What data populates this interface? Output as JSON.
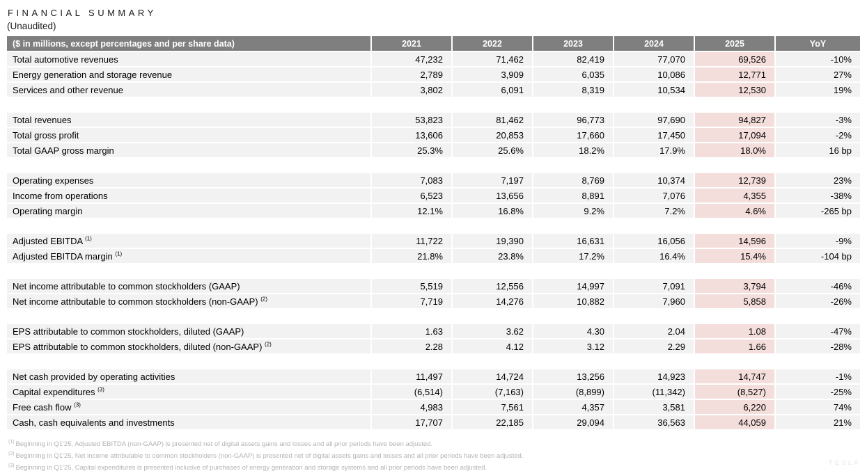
{
  "title": "FINANCIAL SUMMARY",
  "subtitle": "(Unaudited)",
  "watermark": "TESLA",
  "colors": {
    "header_bg": "#7f7f7f",
    "header_text": "#ffffff",
    "row_bg": "#f2f2f2",
    "highlight_column_bg": "#f4dedc",
    "footnote_text": "#b5b3b3"
  },
  "table": {
    "header_label": "($ in millions, except percentages and per share data)",
    "columns": [
      "2021",
      "2022",
      "2023",
      "2024",
      "2025",
      "YoY"
    ],
    "highlight_column": "2025",
    "sections": [
      {
        "rows": [
          {
            "label": "Total automotive revenues",
            "sup": "",
            "values": [
              "47,232",
              "71,462",
              "82,419",
              "77,070",
              "69,526",
              "-10%"
            ]
          },
          {
            "label": "Energy generation and storage revenue",
            "sup": "",
            "values": [
              "2,789",
              "3,909",
              "6,035",
              "10,086",
              "12,771",
              "27%"
            ]
          },
          {
            "label": "Services and other revenue",
            "sup": "",
            "values": [
              "3,802",
              "6,091",
              "8,319",
              "10,534",
              "12,530",
              "19%"
            ]
          }
        ]
      },
      {
        "rows": [
          {
            "label": "Total revenues",
            "sup": "",
            "values": [
              "53,823",
              "81,462",
              "96,773",
              "97,690",
              "94,827",
              "-3%"
            ]
          },
          {
            "label": "Total gross profit",
            "sup": "",
            "values": [
              "13,606",
              "20,853",
              "17,660",
              "17,450",
              "17,094",
              "-2%"
            ]
          },
          {
            "label": "Total GAAP gross margin",
            "sup": "",
            "values": [
              "25.3%",
              "25.6%",
              "18.2%",
              "17.9%",
              "18.0%",
              "16 bp"
            ]
          }
        ]
      },
      {
        "rows": [
          {
            "label": "Operating expenses",
            "sup": "",
            "values": [
              "7,083",
              "7,197",
              "8,769",
              "10,374",
              "12,739",
              "23%"
            ]
          },
          {
            "label": "Income from operations",
            "sup": "",
            "values": [
              "6,523",
              "13,656",
              "8,891",
              "7,076",
              "4,355",
              "-38%"
            ]
          },
          {
            "label": "Operating margin",
            "sup": "",
            "values": [
              "12.1%",
              "16.8%",
              "9.2%",
              "7.2%",
              "4.6%",
              "-265 bp"
            ]
          }
        ]
      },
      {
        "rows": [
          {
            "label": "Adjusted EBITDA ",
            "sup": "(1)",
            "values": [
              "11,722",
              "19,390",
              "16,631",
              "16,056",
              "14,596",
              "-9%"
            ]
          },
          {
            "label": "Adjusted EBITDA margin ",
            "sup": "(1)",
            "values": [
              "21.8%",
              "23.8%",
              "17.2%",
              "16.4%",
              "15.4%",
              "-104 bp"
            ]
          }
        ]
      },
      {
        "rows": [
          {
            "label": "Net income attributable to common stockholders (GAAP)",
            "sup": "",
            "values": [
              "5,519",
              "12,556",
              "14,997",
              "7,091",
              "3,794",
              "-46%"
            ]
          },
          {
            "label": "Net income attributable to common stockholders (non-GAAP) ",
            "sup": "(2)",
            "values": [
              "7,719",
              "14,276",
              "10,882",
              "7,960",
              "5,858",
              "-26%"
            ]
          }
        ]
      },
      {
        "rows": [
          {
            "label": "EPS attributable to common stockholders, diluted (GAAP)",
            "sup": "",
            "values": [
              "1.63",
              "3.62",
              "4.30",
              "2.04",
              "1.08",
              "-47%"
            ]
          },
          {
            "label": "EPS attributable to common stockholders, diluted (non-GAAP) ",
            "sup": "(2)",
            "values": [
              "2.28",
              "4.12",
              "3.12",
              "2.29",
              "1.66",
              "-28%"
            ]
          }
        ]
      },
      {
        "rows": [
          {
            "label": "Net cash provided by operating activities",
            "sup": "",
            "values": [
              "11,497",
              "14,724",
              "13,256",
              "14,923",
              "14,747",
              "-1%"
            ]
          },
          {
            "label": "Capital expenditures ",
            "sup": "(3)",
            "values": [
              "(6,514)",
              "(7,163)",
              "(8,899)",
              "(11,342)",
              "(8,527)",
              "-25%"
            ]
          },
          {
            "label": "Free cash flow ",
            "sup": "(3)",
            "values": [
              "4,983",
              "7,561",
              "4,357",
              "3,581",
              "6,220",
              "74%"
            ]
          },
          {
            "label": "Cash, cash equivalents and investments",
            "sup": "",
            "values": [
              "17,707",
              "22,185",
              "29,094",
              "36,563",
              "44,059",
              "21%"
            ]
          }
        ]
      }
    ]
  },
  "footnotes": [
    {
      "sup": "(1)",
      "text": "Beginning in Q1'25, Adjusted EBITDA (non-GAAP) is presented net of digital assets gains and losses and all prior periods have been adjusted."
    },
    {
      "sup": "(2)",
      "text": "Beginning in Q1'25, Net income attributable to common stockholders (non-GAAP) is presented net of digital assets gains and losses and all prior periods have been adjusted."
    },
    {
      "sup": "(3)",
      "text": "Beginning in Q1'25, Capital expenditures is presented inclusive of purchases of energy generation and storage systems and all prior periods have been adjusted."
    }
  ]
}
